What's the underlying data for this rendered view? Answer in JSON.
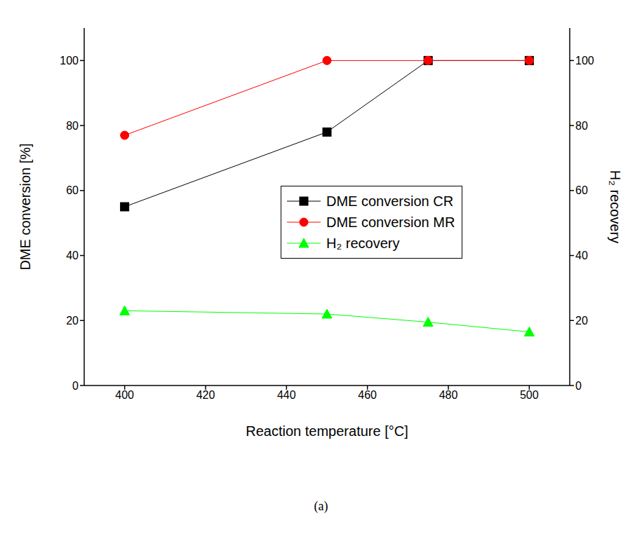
{
  "chart_data": {
    "type": "line",
    "caption": "(a)",
    "x_label": "Reaction temperature [°C]",
    "y_label": "DME conversion [%]",
    "y2_label": "H₂ recovery",
    "x": [
      400,
      450,
      475,
      500
    ],
    "xlim": [
      390,
      510
    ],
    "xticks": [
      400,
      420,
      440,
      460,
      480,
      500
    ],
    "ylim": [
      0,
      110
    ],
    "yticks": [
      0,
      20,
      40,
      60,
      80,
      100
    ],
    "y2lim": [
      0,
      110
    ],
    "y2ticks": [
      0,
      20,
      40,
      60,
      80,
      100
    ],
    "grid": false,
    "legend": "center",
    "series": [
      {
        "name": "DME conversion CR",
        "color": "#000000",
        "marker": "square",
        "values": [
          55,
          78,
          100,
          100
        ]
      },
      {
        "name": "DME conversion MR",
        "color": "#ff0000",
        "marker": "circle",
        "values": [
          77,
          100,
          100,
          100
        ]
      },
      {
        "name": "H₂ recovery",
        "color": "#00ff00",
        "marker": "triangle",
        "axis": "y2",
        "values": [
          23,
          22,
          19.5,
          16.5
        ]
      }
    ]
  }
}
